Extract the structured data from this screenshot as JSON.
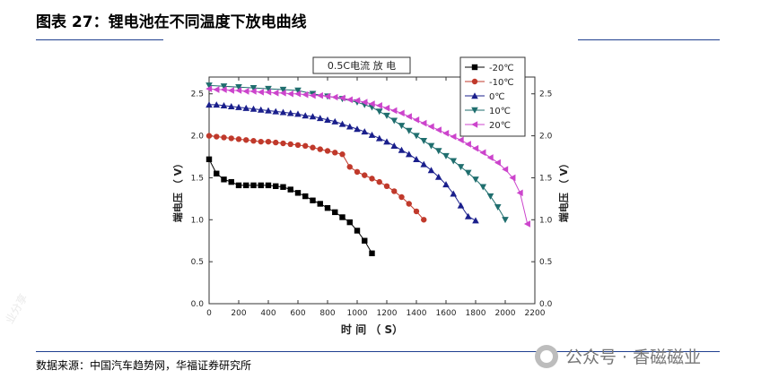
{
  "header": {
    "title": "图表 27：锂电池在不同温度下放电曲线"
  },
  "footer": {
    "source": "数据来源：中国汽车趋势网，华福证券研究所"
  },
  "watermark": {
    "text": "公众号 · 香磁磁业",
    "icon": "wechat-icon",
    "faint_text": "业分享"
  },
  "chart_data": {
    "type": "line",
    "title": "0.5C电流 放 电",
    "xlabel": "时 间 （ S）",
    "ylabel": "端电压 （ V）",
    "ylabel_right": "端电压 （ V）",
    "xlim": [
      0,
      2200
    ],
    "ylim": [
      0.0,
      2.7
    ],
    "xticks": [
      0,
      200,
      400,
      600,
      800,
      1000,
      1200,
      1400,
      1600,
      1800,
      2000,
      2200
    ],
    "yticks": [
      0.0,
      0.5,
      1.0,
      1.5,
      2.0,
      2.5
    ],
    "xtick_labels": [
      "0",
      "200",
      "400",
      "600",
      "800",
      "1000",
      "1200",
      "1400",
      "1600",
      "1800",
      "2000",
      "2200"
    ],
    "ytick_labels": [
      "0.0",
      "0.5",
      "1.0",
      "1.5",
      "2.0",
      "2.5"
    ],
    "legend_position": "top-right",
    "series": [
      {
        "name": "-20℃",
        "color": "#000000",
        "marker": "square",
        "x": [
          0,
          50,
          100,
          150,
          200,
          250,
          300,
          350,
          400,
          450,
          500,
          550,
          600,
          650,
          700,
          750,
          800,
          850,
          900,
          950,
          1000,
          1050,
          1100
        ],
        "y": [
          1.72,
          1.55,
          1.48,
          1.45,
          1.41,
          1.41,
          1.41,
          1.41,
          1.41,
          1.4,
          1.39,
          1.36,
          1.32,
          1.28,
          1.23,
          1.19,
          1.14,
          1.09,
          1.03,
          0.97,
          0.87,
          0.75,
          0.6
        ]
      },
      {
        "name": "-10℃",
        "color": "#c0392b",
        "marker": "circle",
        "x": [
          0,
          50,
          100,
          150,
          200,
          250,
          300,
          350,
          400,
          450,
          500,
          550,
          600,
          650,
          700,
          750,
          800,
          850,
          900,
          950,
          1000,
          1050,
          1100,
          1150,
          1200,
          1250,
          1300,
          1350,
          1400,
          1450
        ],
        "y": [
          2.0,
          1.99,
          1.98,
          1.97,
          1.96,
          1.95,
          1.94,
          1.93,
          1.93,
          1.92,
          1.91,
          1.9,
          1.89,
          1.88,
          1.86,
          1.84,
          1.82,
          1.8,
          1.78,
          1.63,
          1.57,
          1.53,
          1.49,
          1.45,
          1.4,
          1.34,
          1.27,
          1.19,
          1.1,
          1.0
        ]
      },
      {
        "name": "0℃",
        "color": "#1a1f8c",
        "marker": "triangle-up",
        "x": [
          0,
          50,
          100,
          150,
          200,
          250,
          300,
          350,
          400,
          450,
          500,
          550,
          600,
          650,
          700,
          750,
          800,
          850,
          900,
          950,
          1000,
          1050,
          1100,
          1150,
          1200,
          1250,
          1300,
          1350,
          1400,
          1450,
          1500,
          1550,
          1600,
          1650,
          1700,
          1750,
          1800
        ],
        "y": [
          2.37,
          2.37,
          2.36,
          2.35,
          2.34,
          2.33,
          2.32,
          2.31,
          2.3,
          2.29,
          2.28,
          2.27,
          2.26,
          2.24,
          2.23,
          2.21,
          2.19,
          2.17,
          2.14,
          2.11,
          2.08,
          2.05,
          2.01,
          1.97,
          1.93,
          1.88,
          1.83,
          1.78,
          1.72,
          1.66,
          1.59,
          1.51,
          1.42,
          1.31,
          1.17,
          1.04,
          0.99
        ]
      },
      {
        "name": "10℃",
        "color": "#1f6e6e",
        "marker": "triangle-down",
        "x": [
          0,
          100,
          200,
          300,
          400,
          500,
          600,
          700,
          800,
          900,
          1000,
          1050,
          1100,
          1150,
          1200,
          1250,
          1300,
          1350,
          1400,
          1450,
          1500,
          1550,
          1600,
          1650,
          1700,
          1750,
          1800,
          1850,
          1900,
          1950,
          2000
        ],
        "y": [
          2.6,
          2.59,
          2.58,
          2.57,
          2.56,
          2.55,
          2.54,
          2.5,
          2.47,
          2.44,
          2.4,
          2.37,
          2.34,
          2.29,
          2.24,
          2.18,
          2.12,
          2.06,
          2.0,
          1.94,
          1.88,
          1.82,
          1.76,
          1.7,
          1.63,
          1.56,
          1.48,
          1.39,
          1.28,
          1.15,
          1.0
        ]
      },
      {
        "name": "20℃",
        "color": "#cc44cc",
        "marker": "triangle-left",
        "x": [
          0,
          50,
          100,
          150,
          200,
          250,
          300,
          350,
          400,
          450,
          500,
          550,
          600,
          650,
          700,
          750,
          800,
          850,
          900,
          950,
          1000,
          1050,
          1100,
          1150,
          1200,
          1250,
          1300,
          1350,
          1400,
          1450,
          1500,
          1550,
          1600,
          1650,
          1700,
          1750,
          1800,
          1850,
          1900,
          1950,
          2000,
          2050,
          2100,
          2150
        ],
        "y": [
          2.56,
          2.55,
          2.55,
          2.54,
          2.54,
          2.53,
          2.53,
          2.52,
          2.52,
          2.51,
          2.51,
          2.5,
          2.5,
          2.49,
          2.48,
          2.48,
          2.47,
          2.46,
          2.45,
          2.43,
          2.42,
          2.4,
          2.38,
          2.36,
          2.33,
          2.3,
          2.27,
          2.23,
          2.19,
          2.15,
          2.11,
          2.07,
          2.03,
          1.99,
          1.95,
          1.9,
          1.85,
          1.8,
          1.74,
          1.68,
          1.6,
          1.5,
          1.32,
          0.95
        ]
      }
    ]
  }
}
